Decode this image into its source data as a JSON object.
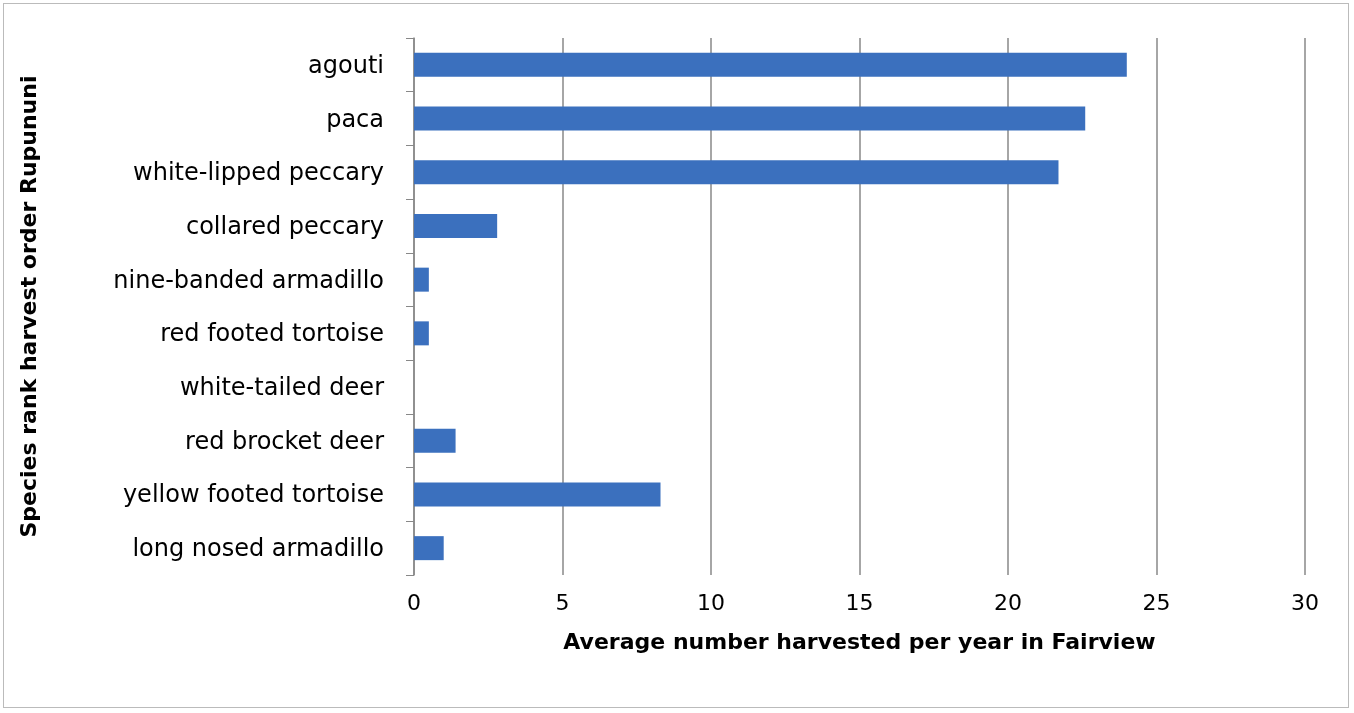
{
  "chart_data": {
    "type": "bar",
    "orientation": "horizontal",
    "xlabel": "Average number harvested per year in Fairview",
    "ylabel": "Species rank harvest order Rupununi",
    "categories": [
      "agouti",
      "paca",
      "white-lipped peccary",
      "collared peccary",
      "nine-banded armadillo",
      "red footed tortoise",
      "white-tailed deer",
      "red brocket deer",
      "yellow footed tortoise",
      "long nosed armadillo"
    ],
    "values": [
      24.0,
      22.6,
      21.7,
      2.8,
      0.5,
      0.5,
      0,
      1.4,
      8.3,
      1.0
    ],
    "color": "#3b70be",
    "xlim": [
      0,
      30
    ],
    "xticks": [
      0,
      5,
      10,
      15,
      20,
      25,
      30
    ],
    "grid": "x"
  }
}
